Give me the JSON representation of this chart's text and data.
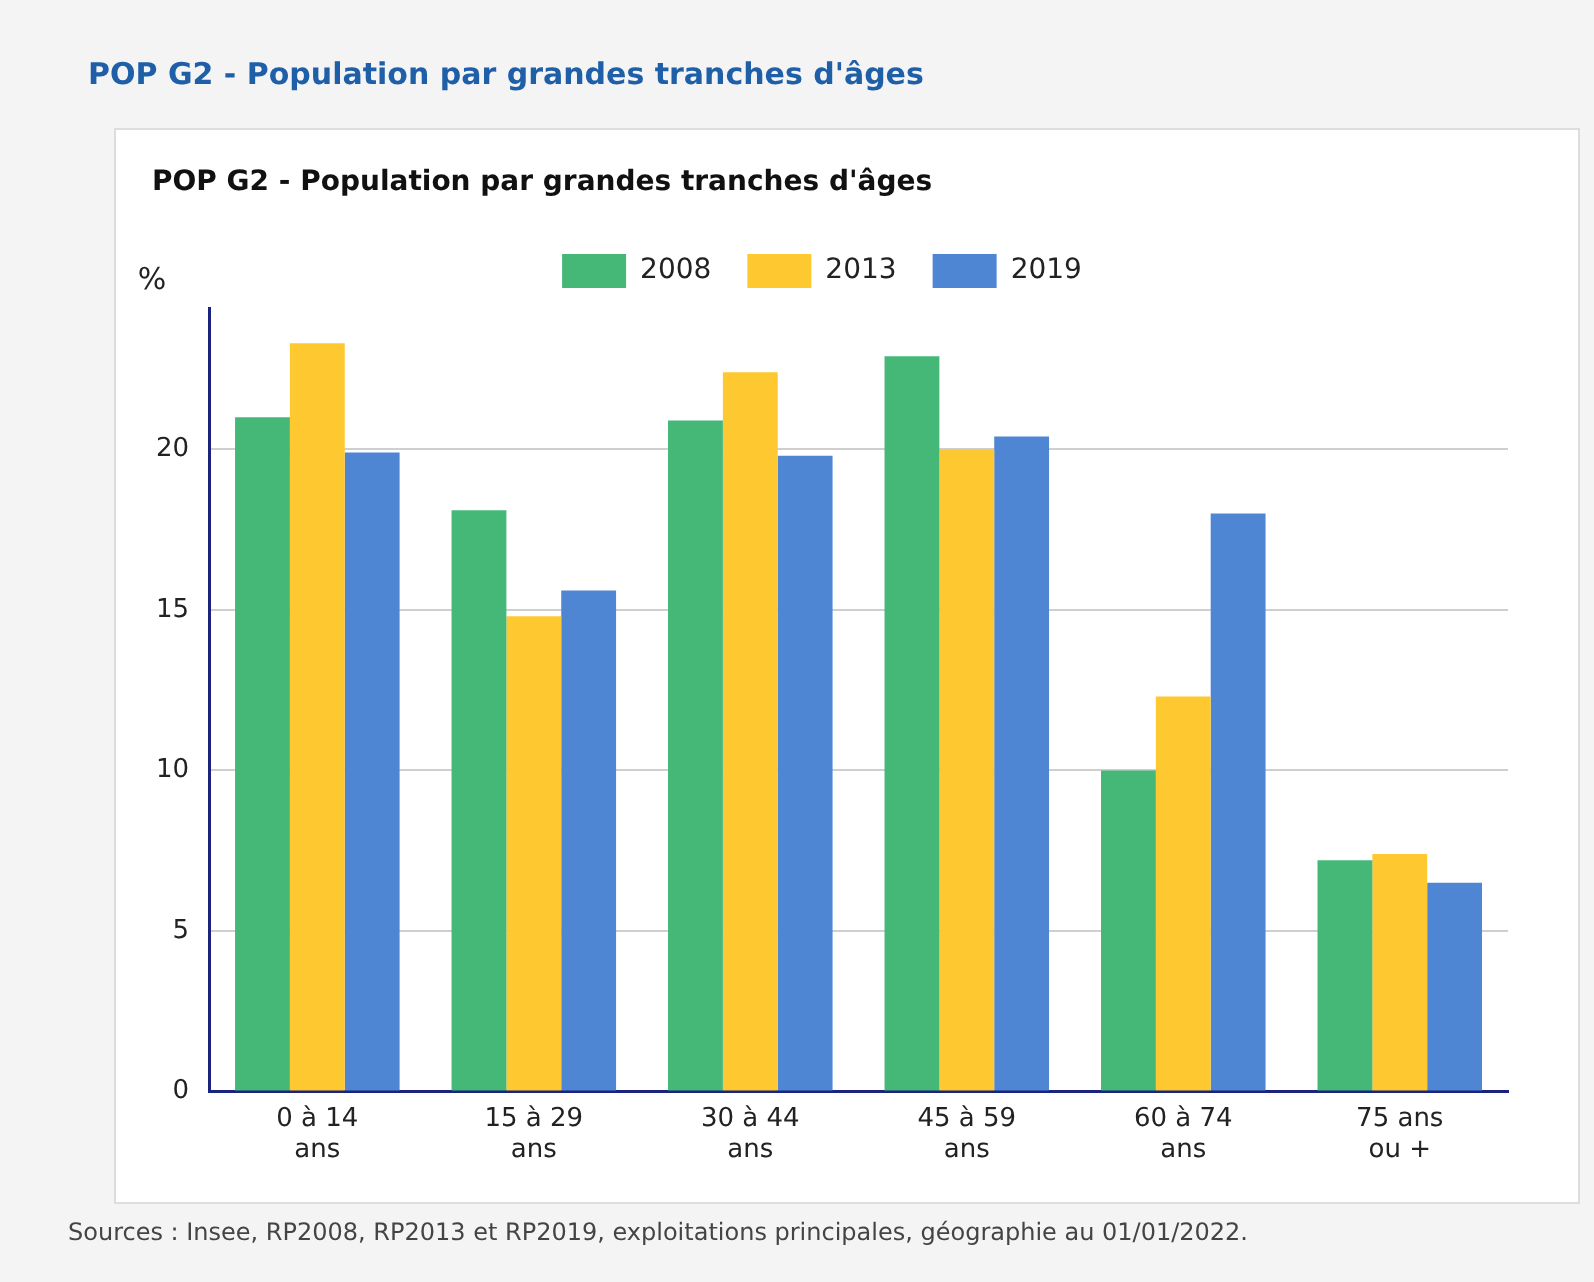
{
  "chart_data": {
    "type": "bar",
    "title": "POP G2 - Population par grandes tranches d'âges",
    "subtitle": "POP G2 - Population par grandes tranches d'âges",
    "ylabel": "%",
    "categories": [
      "0 à 14\nans",
      "15 à 29\nans",
      "30 à 44\nans",
      "45 à 59\nans",
      "60 à 74\nans",
      "75 ans\nou +"
    ],
    "series": [
      {
        "name": "2008",
        "color": "#45b878",
        "values": [
          21.0,
          18.1,
          20.9,
          22.9,
          10.0,
          7.2
        ]
      },
      {
        "name": "2013",
        "color": "#fdc830",
        "values": [
          23.3,
          14.8,
          22.4,
          20.0,
          12.3,
          7.4
        ]
      },
      {
        "name": "2019",
        "color": "#4e86d4",
        "values": [
          19.9,
          15.6,
          19.8,
          20.4,
          18.0,
          6.5
        ]
      }
    ],
    "ylim": [
      0,
      24.4
    ],
    "yticks": [
      0,
      5,
      10,
      15,
      20
    ],
    "grid": "y",
    "legend": "top",
    "annotations": [
      "Sources : Insee, RP2008, RP2013 et RP2019, exploitations principales, géographie au 01/01/2022."
    ]
  }
}
